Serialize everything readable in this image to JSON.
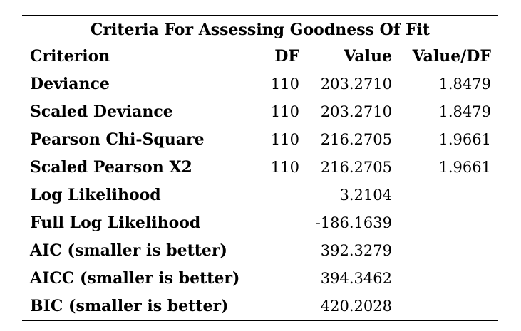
{
  "table": {
    "title": "Criteria For Assessing Goodness Of Fit",
    "headers": {
      "criterion": "Criterion",
      "df": "DF",
      "value": "Value",
      "value_df": "Value/DF"
    },
    "rows": [
      {
        "criterion": "Deviance",
        "df": "110",
        "value": "203.2710",
        "value_df": "1.8479"
      },
      {
        "criterion": "Scaled Deviance",
        "df": "110",
        "value": "203.2710",
        "value_df": "1.8479"
      },
      {
        "criterion": "Pearson Chi-Square",
        "df": "110",
        "value": "216.2705",
        "value_df": "1.9661"
      },
      {
        "criterion": "Scaled Pearson X2",
        "df": "110",
        "value": "216.2705",
        "value_df": "1.9661"
      },
      {
        "criterion": "Log Likelihood",
        "df": "",
        "value": "3.2104",
        "value_df": ""
      },
      {
        "criterion": "Full Log Likelihood",
        "df": "",
        "value": "-186.1639",
        "value_df": ""
      },
      {
        "criterion": "AIC (smaller is better)",
        "df": "",
        "value": "392.3279",
        "value_df": ""
      },
      {
        "criterion": "AICC (smaller is better)",
        "df": "",
        "value": "394.3462",
        "value_df": ""
      },
      {
        "criterion": "BIC (smaller is better)",
        "df": "",
        "value": "420.2028",
        "value_df": ""
      }
    ]
  }
}
